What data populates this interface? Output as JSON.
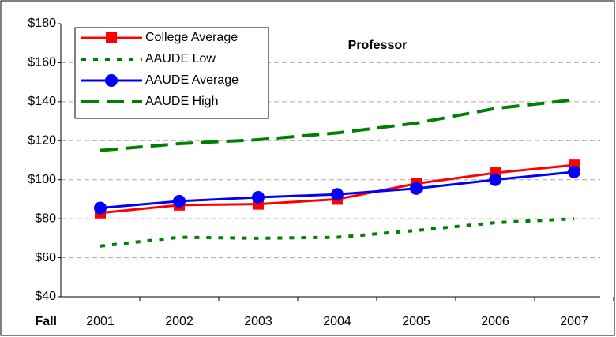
{
  "chart_data": {
    "type": "line",
    "title": "Professor",
    "x_label": "Fall",
    "categories": [
      "2001",
      "2002",
      "2003",
      "2004",
      "2005",
      "2006",
      "2007"
    ],
    "series": [
      {
        "name": "College  Average",
        "color": "#ff0000",
        "marker": "square",
        "dash": "solid",
        "values": [
          83,
          87,
          87.5,
          90,
          98,
          103.5,
          107.5
        ]
      },
      {
        "name": "AAUDE Low",
        "color": "#008000",
        "dash": "dotted",
        "values": [
          66,
          70.5,
          70,
          70.5,
          74,
          78,
          80
        ]
      },
      {
        "name": "AAUDE Average",
        "color": "#0000ff",
        "marker": "circle",
        "dash": "solid",
        "values": [
          85.5,
          89,
          91,
          92.5,
          95.5,
          100,
          104
        ]
      },
      {
        "name": "AAUDE High",
        "color": "#008000",
        "dash": "dashed",
        "values": [
          115,
          118.5,
          120.5,
          124,
          129,
          136.5,
          141
        ]
      }
    ],
    "ylim": [
      40,
      180
    ],
    "yticks": [
      {
        "value": 40,
        "label": "$40"
      },
      {
        "value": 60,
        "label": "$60"
      },
      {
        "value": 80,
        "label": "$80"
      },
      {
        "value": 100,
        "label": "$100"
      },
      {
        "value": 120,
        "label": "$120"
      },
      {
        "value": 140,
        "label": "$140"
      },
      {
        "value": 160,
        "label": "$160"
      },
      {
        "value": 180,
        "label": "$180"
      }
    ],
    "grid": true,
    "legend": "upper left"
  }
}
